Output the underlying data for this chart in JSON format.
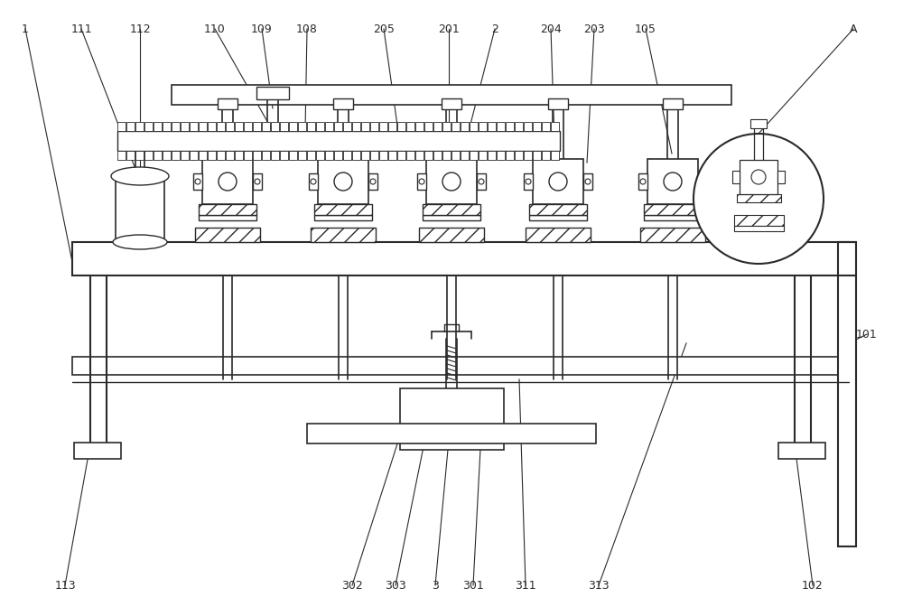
{
  "bg_color": "#ffffff",
  "lc": "#2a2a2a",
  "lw": 1.2,
  "fig_w": 10.0,
  "fig_h": 6.82,
  "dpi": 100
}
